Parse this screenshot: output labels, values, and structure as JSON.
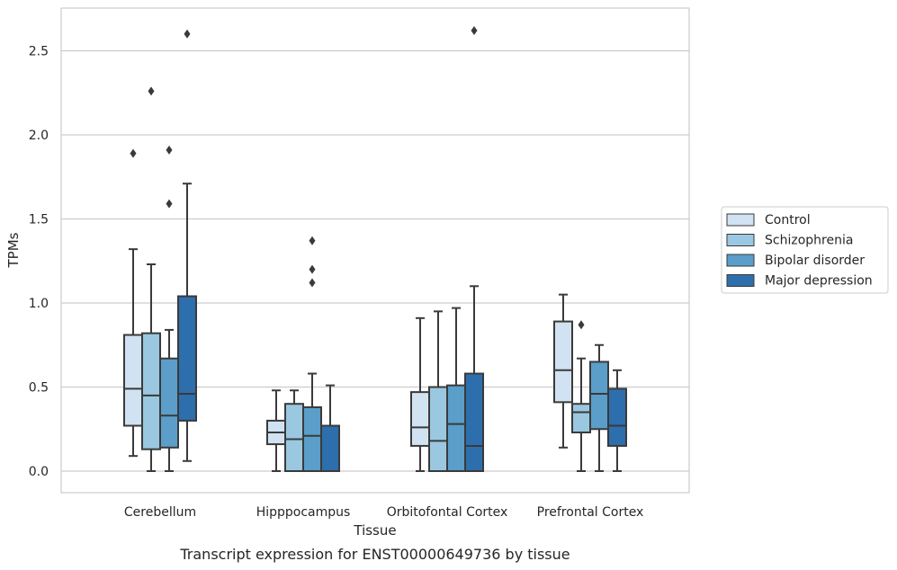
{
  "chart_data": {
    "type": "box",
    "caption": "Transcript expression for ENST00000649736 by tissue",
    "xlabel": "Tissue",
    "ylabel": "TPMs",
    "ylim": [
      -0.13,
      2.76
    ],
    "yticks": [
      "0.0",
      "0.5",
      "1.0",
      "1.5",
      "2.0",
      "2.5"
    ],
    "grid": "horizontal",
    "legend_position": "right",
    "categories": [
      "Cerebellum",
      "Hipppocampus",
      "Orbitofontal Cortex",
      "Prefrontal Cortex"
    ],
    "series": [
      {
        "name": "Control",
        "color": "#d1e2f2",
        "boxes": [
          {
            "whislo": 0.09,
            "q1": 0.27,
            "med": 0.49,
            "q3": 0.81,
            "whishi": 1.32,
            "fliers": [
              1.89
            ]
          },
          {
            "whislo": 0.0,
            "q1": 0.16,
            "med": 0.23,
            "q3": 0.3,
            "whishi": 0.48,
            "fliers": []
          },
          {
            "whislo": 0.0,
            "q1": 0.15,
            "med": 0.26,
            "q3": 0.47,
            "whishi": 0.91,
            "fliers": []
          },
          {
            "whislo": 0.14,
            "q1": 0.41,
            "med": 0.6,
            "q3": 0.89,
            "whishi": 1.05,
            "fliers": []
          }
        ]
      },
      {
        "name": "Schizophrenia",
        "color": "#9ac8e0",
        "boxes": [
          {
            "whislo": 0.0,
            "q1": 0.13,
            "med": 0.45,
            "q3": 0.82,
            "whishi": 1.23,
            "fliers": [
              2.26
            ]
          },
          {
            "whislo": 0.0,
            "q1": 0.0,
            "med": 0.19,
            "q3": 0.4,
            "whishi": 0.48,
            "fliers": []
          },
          {
            "whislo": 0.0,
            "q1": 0.0,
            "med": 0.18,
            "q3": 0.5,
            "whishi": 0.95,
            "fliers": []
          },
          {
            "whislo": 0.0,
            "q1": 0.23,
            "med": 0.35,
            "q3": 0.4,
            "whishi": 0.67,
            "fliers": [
              0.87
            ]
          }
        ]
      },
      {
        "name": "Bipolar disorder",
        "color": "#5a9ec9",
        "boxes": [
          {
            "whislo": 0.0,
            "q1": 0.14,
            "med": 0.33,
            "q3": 0.67,
            "whishi": 0.84,
            "fliers": [
              1.59,
              1.91
            ]
          },
          {
            "whislo": 0.0,
            "q1": 0.0,
            "med": 0.21,
            "q3": 0.38,
            "whishi": 0.58,
            "fliers": [
              1.12,
              1.2,
              1.37
            ]
          },
          {
            "whislo": 0.0,
            "q1": 0.0,
            "med": 0.28,
            "q3": 0.51,
            "whishi": 0.97,
            "fliers": []
          },
          {
            "whislo": 0.0,
            "q1": 0.25,
            "med": 0.46,
            "q3": 0.65,
            "whishi": 0.75,
            "fliers": []
          }
        ]
      },
      {
        "name": "Major depression",
        "color": "#2d6fac",
        "boxes": [
          {
            "whislo": 0.06,
            "q1": 0.3,
            "med": 0.46,
            "q3": 1.04,
            "whishi": 1.71,
            "fliers": [
              2.6
            ]
          },
          {
            "whislo": 0.0,
            "q1": 0.0,
            "med": 0.0,
            "q3": 0.27,
            "whishi": 0.51,
            "fliers": []
          },
          {
            "whislo": 0.0,
            "q1": 0.0,
            "med": 0.15,
            "q3": 0.58,
            "whishi": 1.1,
            "fliers": [
              2.62
            ]
          },
          {
            "whislo": 0.0,
            "q1": 0.15,
            "med": 0.27,
            "q3": 0.49,
            "whishi": 0.6,
            "fliers": []
          }
        ]
      }
    ]
  }
}
